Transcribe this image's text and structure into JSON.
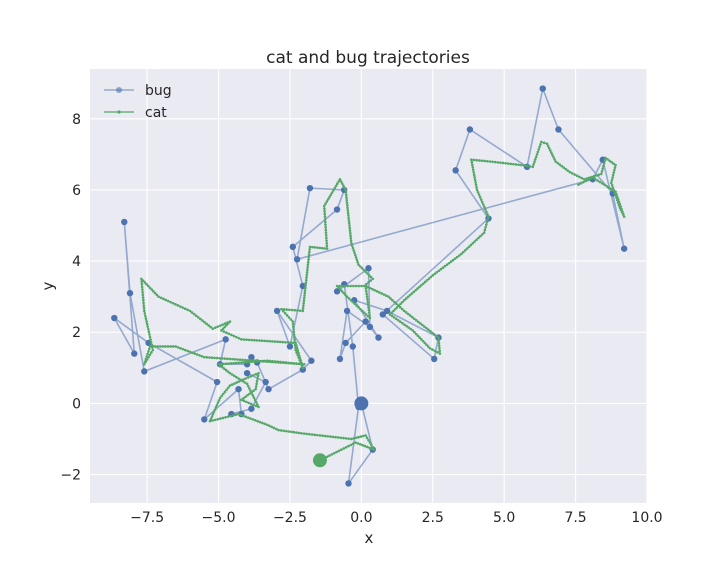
{
  "chart_data": {
    "type": "line",
    "title": "cat and bug trajectories",
    "xlabel": "x",
    "ylabel": "y",
    "xlim": [
      -9.5,
      10.0
    ],
    "ylim": [
      -2.8,
      9.4
    ],
    "xticks": [
      -7.5,
      -5.0,
      -2.5,
      0.0,
      2.5,
      5.0,
      7.5,
      10.0
    ],
    "xtick_labels": [
      "−7.5",
      "−5.0",
      "−2.5",
      "0.0",
      "2.5",
      "5.0",
      "7.5",
      "10.0"
    ],
    "yticks": [
      -2,
      0,
      2,
      4,
      6,
      8
    ],
    "ytick_labels": [
      "−2",
      "0",
      "2",
      "4",
      "6",
      "8"
    ],
    "grid": true,
    "legend_position": "top-left",
    "series": [
      {
        "name": "bug",
        "color": "#4c72b0",
        "marker": "circle",
        "start_marker": [
          0.0,
          0.0
        ],
        "points": [
          [
            0.0,
            0.0
          ],
          [
            0.4,
            -1.3
          ],
          [
            -0.45,
            -2.25
          ],
          [
            -0.1,
            -0.1
          ],
          [
            -0.3,
            1.6
          ],
          [
            -0.6,
            3.35
          ],
          [
            -0.85,
            3.15
          ],
          [
            0.25,
            3.8
          ],
          [
            0.3,
            2.15
          ],
          [
            -0.5,
            2.6
          ],
          [
            -0.75,
            1.25
          ],
          [
            -0.55,
            1.7
          ],
          [
            0.15,
            2.3
          ],
          [
            0.6,
            1.85
          ],
          [
            -0.25,
            2.9
          ],
          [
            0.9,
            2.6
          ],
          [
            2.7,
            1.85
          ],
          [
            2.55,
            1.25
          ],
          [
            0.75,
            2.5
          ],
          [
            4.45,
            5.2
          ],
          [
            3.3,
            6.55
          ],
          [
            3.8,
            7.7
          ],
          [
            5.8,
            6.65
          ],
          [
            6.35,
            8.85
          ],
          [
            6.9,
            7.7
          ],
          [
            8.8,
            5.9
          ],
          [
            9.2,
            4.35
          ],
          [
            8.45,
            6.85
          ],
          [
            8.1,
            6.3
          ],
          [
            -2.25,
            4.05
          ],
          [
            -1.8,
            6.05
          ],
          [
            -0.6,
            6.0
          ],
          [
            -0.85,
            5.45
          ],
          [
            -2.4,
            4.4
          ],
          [
            -2.05,
            3.3
          ],
          [
            -2.5,
            1.6
          ],
          [
            -2.95,
            2.6
          ],
          [
            -1.75,
            1.2
          ],
          [
            -2.05,
            0.95
          ],
          [
            -3.25,
            0.4
          ],
          [
            -3.65,
            1.15
          ],
          [
            -3.85,
            1.3
          ],
          [
            -4.0,
            1.1
          ],
          [
            -4.95,
            1.1
          ],
          [
            -4.75,
            1.8
          ],
          [
            -7.6,
            0.9
          ],
          [
            -8.1,
            3.1
          ],
          [
            -8.3,
            5.1
          ],
          [
            -7.95,
            1.4
          ],
          [
            -8.65,
            2.4
          ],
          [
            -7.45,
            1.7
          ],
          [
            -5.05,
            0.6
          ],
          [
            -5.5,
            -0.45
          ],
          [
            -4.3,
            0.4
          ],
          [
            -4.2,
            -0.3
          ],
          [
            -4.55,
            -0.3
          ],
          [
            -3.85,
            -0.15
          ],
          [
            -3.35,
            0.6
          ],
          [
            -4.0,
            0.85
          ]
        ]
      },
      {
        "name": "cat",
        "color": "#55a868",
        "marker": "dot",
        "start_marker": [
          -1.45,
          -1.6
        ],
        "points": [
          [
            -1.45,
            -1.6
          ],
          [
            -0.2,
            -1.1
          ],
          [
            0.45,
            -1.3
          ],
          [
            0.15,
            -0.9
          ],
          [
            -0.35,
            -1.0
          ],
          [
            -2.0,
            -0.85
          ],
          [
            -2.9,
            -0.75
          ],
          [
            -3.3,
            -0.6
          ],
          [
            -4.3,
            -0.3
          ],
          [
            -5.3,
            -0.5
          ],
          [
            -4.95,
            0.15
          ],
          [
            -4.6,
            0.5
          ],
          [
            -4.05,
            0.7
          ],
          [
            -3.6,
            0.85
          ],
          [
            -3.7,
            0.4
          ],
          [
            -4.2,
            0.1
          ],
          [
            -3.6,
            -0.1
          ],
          [
            -4.0,
            0.55
          ],
          [
            -4.6,
            0.85
          ],
          [
            -5.0,
            1.1
          ],
          [
            -3.3,
            1.2
          ],
          [
            -2.0,
            1.1
          ],
          [
            -5.5,
            1.3
          ],
          [
            -6.5,
            1.6
          ],
          [
            -7.4,
            1.6
          ],
          [
            -7.6,
            1.1
          ],
          [
            -7.3,
            1.5
          ],
          [
            -7.6,
            2.6
          ],
          [
            -7.7,
            3.5
          ],
          [
            -7.1,
            3.0
          ],
          [
            -6.0,
            2.6
          ],
          [
            -5.2,
            2.1
          ],
          [
            -4.6,
            2.3
          ],
          [
            -4.9,
            2.05
          ],
          [
            -4.2,
            1.8
          ],
          [
            -2.3,
            1.7
          ],
          [
            -2.05,
            1.0
          ],
          [
            -2.3,
            1.5
          ],
          [
            -2.4,
            2.3
          ],
          [
            -2.8,
            2.65
          ],
          [
            -2.05,
            2.6
          ],
          [
            -1.8,
            4.4
          ],
          [
            -1.2,
            4.35
          ],
          [
            -1.3,
            5.55
          ],
          [
            -0.75,
            6.3
          ],
          [
            -0.55,
            6.0
          ],
          [
            -0.35,
            4.5
          ],
          [
            -0.1,
            3.9
          ],
          [
            0.4,
            3.5
          ],
          [
            0.1,
            3.3
          ],
          [
            -0.85,
            3.3
          ],
          [
            -0.5,
            3.0
          ],
          [
            0.3,
            2.4
          ],
          [
            0.15,
            3.3
          ],
          [
            0.95,
            3.0
          ],
          [
            1.5,
            2.6
          ],
          [
            2.7,
            1.85
          ],
          [
            2.75,
            1.4
          ],
          [
            2.4,
            1.55
          ],
          [
            1.8,
            2.05
          ],
          [
            1.0,
            2.5
          ],
          [
            1.5,
            2.9
          ],
          [
            2.5,
            3.6
          ],
          [
            3.5,
            4.2
          ],
          [
            4.3,
            4.8
          ],
          [
            4.45,
            5.25
          ],
          [
            4.05,
            6.0
          ],
          [
            3.85,
            6.85
          ],
          [
            4.5,
            6.8
          ],
          [
            5.6,
            6.7
          ],
          [
            6.0,
            6.65
          ],
          [
            6.3,
            7.35
          ],
          [
            6.5,
            7.3
          ],
          [
            6.8,
            6.8
          ],
          [
            7.3,
            6.5
          ],
          [
            7.8,
            6.3
          ],
          [
            8.4,
            6.45
          ],
          [
            8.55,
            6.9
          ],
          [
            8.9,
            6.7
          ],
          [
            8.75,
            6.2
          ],
          [
            9.05,
            5.5
          ],
          [
            9.2,
            5.25
          ],
          [
            8.9,
            5.95
          ],
          [
            8.6,
            6.1
          ],
          [
            8.1,
            6.35
          ],
          [
            7.6,
            6.15
          ]
        ]
      }
    ]
  }
}
